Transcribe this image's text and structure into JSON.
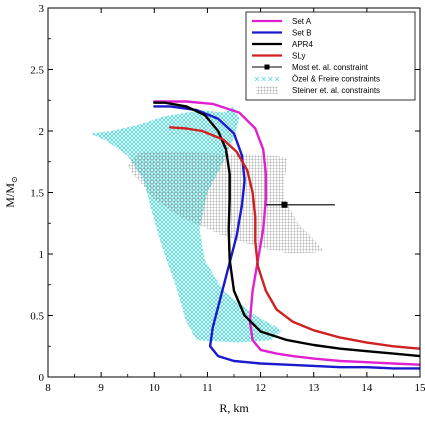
{
  "chart_data": {
    "type": "line",
    "xlabel": "R, km",
    "ylabel": "M/M",
    "ylabel_subscript": "⊙",
    "xlim": [
      8,
      15
    ],
    "ylim": [
      0,
      3
    ],
    "x_ticks": [
      "8",
      "9",
      "10",
      "11",
      "12",
      "13",
      "14",
      "15"
    ],
    "y_ticks": [
      "0",
      "0.5",
      "1",
      "1.5",
      "2",
      "2.5",
      "3"
    ],
    "x_tick_values": [
      8,
      9,
      10,
      11,
      12,
      13,
      14,
      15
    ],
    "y_tick_values": [
      0,
      0.5,
      1,
      1.5,
      2,
      2.5,
      3
    ],
    "legend_position": "top-right",
    "series": [
      {
        "name": "Set A",
        "color": "#e020d0",
        "points": [
          [
            15.0,
            0.1
          ],
          [
            14.5,
            0.11
          ],
          [
            14.0,
            0.12
          ],
          [
            13.5,
            0.13
          ],
          [
            13.0,
            0.15
          ],
          [
            12.6,
            0.17
          ],
          [
            12.3,
            0.19
          ],
          [
            12.0,
            0.22
          ],
          [
            11.85,
            0.3
          ],
          [
            11.8,
            0.45
          ],
          [
            11.85,
            0.7
          ],
          [
            11.95,
            0.95
          ],
          [
            12.05,
            1.2
          ],
          [
            12.1,
            1.45
          ],
          [
            12.1,
            1.65
          ],
          [
            12.05,
            1.85
          ],
          [
            11.9,
            2.02
          ],
          [
            11.6,
            2.15
          ],
          [
            11.1,
            2.22
          ],
          [
            10.6,
            2.24
          ],
          [
            10.0,
            2.24
          ]
        ]
      },
      {
        "name": "Set B",
        "color": "#1a1acc",
        "points": [
          [
            15.0,
            0.07
          ],
          [
            14.5,
            0.07
          ],
          [
            14.0,
            0.08
          ],
          [
            13.5,
            0.08
          ],
          [
            13.0,
            0.09
          ],
          [
            12.5,
            0.1
          ],
          [
            12.0,
            0.11
          ],
          [
            11.5,
            0.13
          ],
          [
            11.2,
            0.17
          ],
          [
            11.05,
            0.25
          ],
          [
            11.1,
            0.4
          ],
          [
            11.25,
            0.65
          ],
          [
            11.4,
            0.9
          ],
          [
            11.55,
            1.15
          ],
          [
            11.65,
            1.4
          ],
          [
            11.7,
            1.6
          ],
          [
            11.65,
            1.8
          ],
          [
            11.5,
            1.98
          ],
          [
            11.2,
            2.1
          ],
          [
            10.8,
            2.17
          ],
          [
            10.3,
            2.2
          ],
          [
            10.0,
            2.2
          ]
        ]
      },
      {
        "name": "APR4",
        "color": "#000000",
        "points": [
          [
            15.0,
            0.17
          ],
          [
            14.5,
            0.19
          ],
          [
            14.0,
            0.21
          ],
          [
            13.5,
            0.23
          ],
          [
            13.0,
            0.26
          ],
          [
            12.5,
            0.3
          ],
          [
            12.0,
            0.37
          ],
          [
            11.7,
            0.5
          ],
          [
            11.5,
            0.7
          ],
          [
            11.42,
            0.95
          ],
          [
            11.4,
            1.2
          ],
          [
            11.42,
            1.45
          ],
          [
            11.42,
            1.65
          ],
          [
            11.35,
            1.85
          ],
          [
            11.2,
            2.0
          ],
          [
            10.95,
            2.13
          ],
          [
            10.6,
            2.2
          ],
          [
            10.2,
            2.23
          ],
          [
            10.0,
            2.23
          ]
        ]
      },
      {
        "name": "SLy",
        "color": "#d02020",
        "points": [
          [
            15.0,
            0.23
          ],
          [
            14.5,
            0.25
          ],
          [
            14.0,
            0.28
          ],
          [
            13.5,
            0.32
          ],
          [
            13.0,
            0.38
          ],
          [
            12.6,
            0.45
          ],
          [
            12.3,
            0.55
          ],
          [
            12.1,
            0.7
          ],
          [
            11.95,
            0.9
          ],
          [
            11.9,
            1.1
          ],
          [
            11.9,
            1.3
          ],
          [
            11.85,
            1.5
          ],
          [
            11.75,
            1.68
          ],
          [
            11.55,
            1.83
          ],
          [
            11.3,
            1.93
          ],
          [
            10.9,
            2.0
          ],
          [
            10.6,
            2.02
          ],
          [
            10.3,
            2.03
          ]
        ]
      }
    ],
    "constraint_point": {
      "name": "Most et. al. constraint",
      "color": "#000000",
      "x": 12.45,
      "y": 1.4,
      "xerr_low": 12.1,
      "xerr_high": 13.4
    },
    "ozel_region": {
      "name": "Özel & Freire constraints",
      "color": "#4fd8d8",
      "polygon": [
        [
          8.8,
          1.98
        ],
        [
          9.2,
          2.0
        ],
        [
          9.7,
          2.05
        ],
        [
          10.2,
          2.12
        ],
        [
          10.9,
          2.17
        ],
        [
          11.3,
          2.15
        ],
        [
          11.5,
          2.2
        ],
        [
          11.6,
          2.1
        ],
        [
          11.5,
          1.95
        ],
        [
          11.3,
          1.75
        ],
        [
          11.0,
          1.5
        ],
        [
          10.85,
          1.2
        ],
        [
          10.95,
          0.95
        ],
        [
          11.3,
          0.7
        ],
        [
          11.9,
          0.5
        ],
        [
          12.4,
          0.38
        ],
        [
          12.2,
          0.3
        ],
        [
          11.6,
          0.28
        ],
        [
          10.8,
          0.3
        ],
        [
          10.6,
          0.45
        ],
        [
          10.4,
          0.75
        ],
        [
          10.15,
          1.05
        ],
        [
          9.95,
          1.35
        ],
        [
          9.8,
          1.6
        ],
        [
          9.5,
          1.8
        ],
        [
          9.1,
          1.92
        ]
      ]
    },
    "steiner_region": {
      "name": "Steiner et. al. constraints",
      "color": "#777777",
      "polygon": [
        [
          9.7,
          1.82
        ],
        [
          10.3,
          1.83
        ],
        [
          11.0,
          1.82
        ],
        [
          11.8,
          1.81
        ],
        [
          12.3,
          1.8
        ],
        [
          12.5,
          1.78
        ],
        [
          12.45,
          1.6
        ],
        [
          12.45,
          1.45
        ],
        [
          12.7,
          1.25
        ],
        [
          13.0,
          1.12
        ],
        [
          13.2,
          1.02
        ],
        [
          12.6,
          1.0
        ],
        [
          12.0,
          1.05
        ],
        [
          11.3,
          1.15
        ],
        [
          10.5,
          1.3
        ],
        [
          10.0,
          1.45
        ],
        [
          9.6,
          1.65
        ],
        [
          9.5,
          1.72
        ]
      ]
    }
  }
}
